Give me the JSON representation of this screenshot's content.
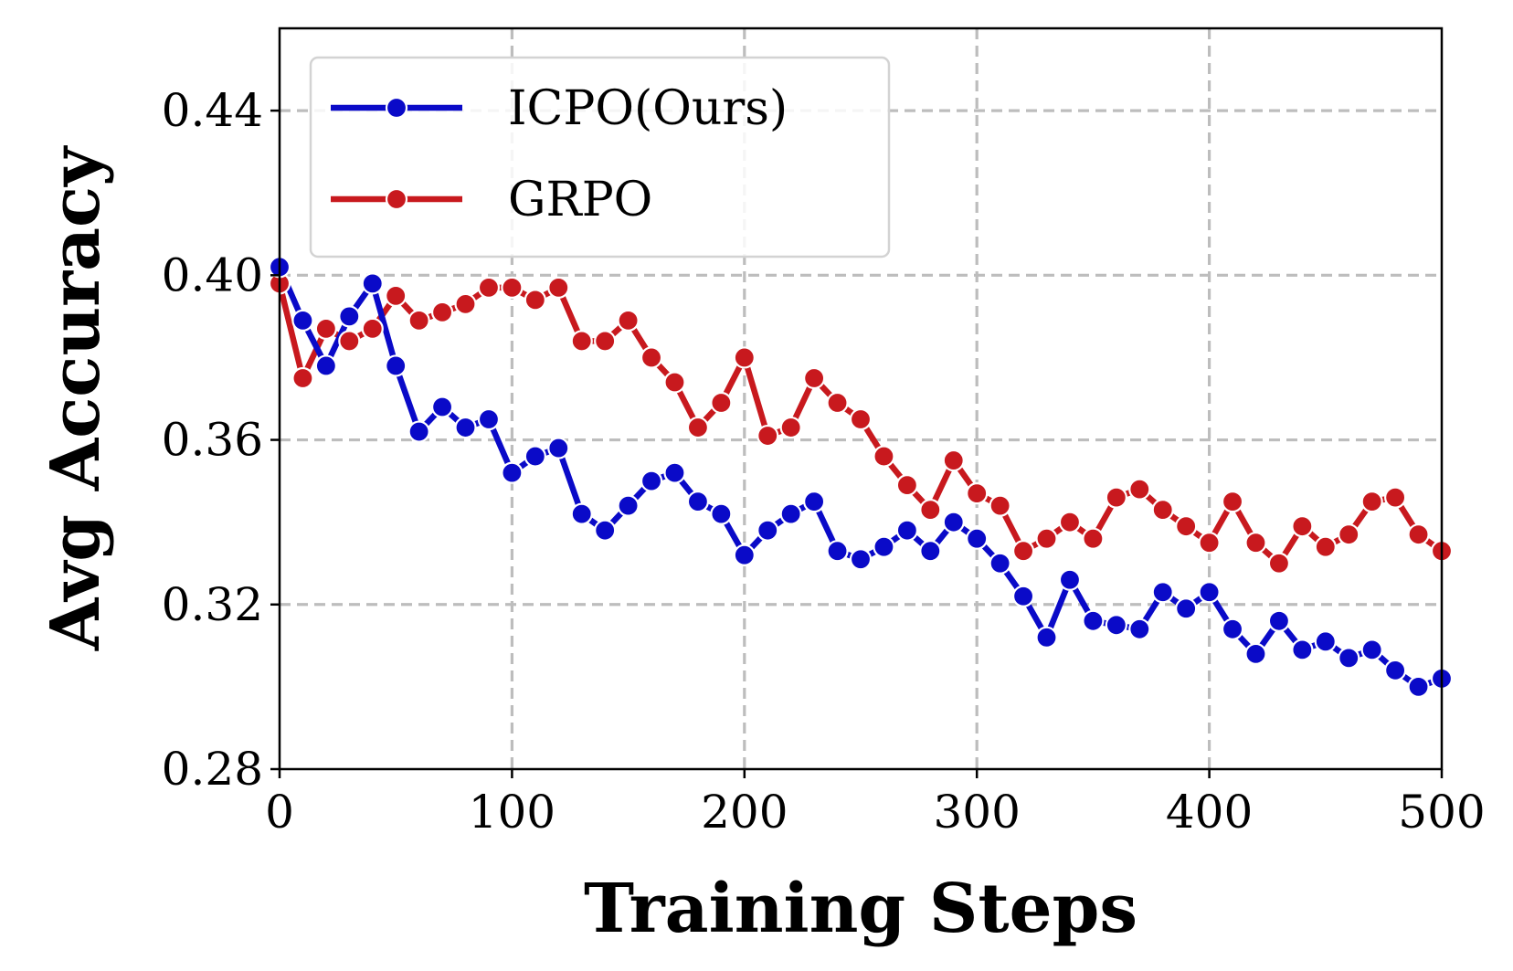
{
  "chart_data": {
    "type": "line",
    "xlabel": "Training Steps",
    "ylabel": "Avg Accuracy",
    "xlim": [
      0,
      500
    ],
    "ylim": [
      0.28,
      0.46
    ],
    "xticks": [
      0,
      100,
      200,
      300,
      400,
      500
    ],
    "yticks": [
      0.28,
      0.32,
      0.36,
      0.4,
      0.44
    ],
    "xtick_labels": [
      "0",
      "100",
      "200",
      "300",
      "400",
      "500"
    ],
    "ytick_labels": [
      "0.28",
      "0.32",
      "0.36",
      "0.40",
      "0.44"
    ],
    "grid": true,
    "legend_position": "top-left",
    "x": [
      0,
      10,
      20,
      30,
      40,
      50,
      60,
      70,
      80,
      90,
      100,
      110,
      120,
      130,
      140,
      150,
      160,
      170,
      180,
      190,
      200,
      210,
      220,
      230,
      240,
      250,
      260,
      270,
      280,
      290,
      300,
      310,
      320,
      330,
      340,
      350,
      360,
      370,
      380,
      390,
      400,
      410,
      420,
      430,
      440,
      450,
      460,
      470,
      480,
      490,
      500
    ],
    "series": [
      {
        "name": "ICPO(Ours)",
        "color": "#0a0ac8",
        "values": [
          0.402,
          0.389,
          0.378,
          0.39,
          0.398,
          0.378,
          0.362,
          0.368,
          0.363,
          0.365,
          0.352,
          0.356,
          0.358,
          0.342,
          0.338,
          0.344,
          0.35,
          0.352,
          0.345,
          0.342,
          0.332,
          0.338,
          0.342,
          0.345,
          0.333,
          0.331,
          0.334,
          0.338,
          0.333,
          0.34,
          0.336,
          0.33,
          0.322,
          0.312,
          0.326,
          0.316,
          0.315,
          0.314,
          0.323,
          0.319,
          0.323,
          0.314,
          0.308,
          0.316,
          0.309,
          0.311,
          0.307,
          0.309,
          0.304,
          0.3,
          0.302
        ]
      },
      {
        "name": "GRPO",
        "color": "#c8191e",
        "values": [
          0.398,
          0.375,
          0.387,
          0.384,
          0.387,
          0.395,
          0.389,
          0.391,
          0.393,
          0.397,
          0.397,
          0.394,
          0.397,
          0.384,
          0.384,
          0.389,
          0.38,
          0.374,
          0.363,
          0.369,
          0.38,
          0.361,
          0.363,
          0.375,
          0.369,
          0.365,
          0.356,
          0.349,
          0.343,
          0.355,
          0.347,
          0.344,
          0.333,
          0.336,
          0.34,
          0.336,
          0.346,
          0.348,
          0.343,
          0.339,
          0.335,
          0.345,
          0.335,
          0.33,
          0.339,
          0.334,
          0.337,
          0.345,
          0.346,
          0.337,
          0.333
        ]
      }
    ]
  }
}
